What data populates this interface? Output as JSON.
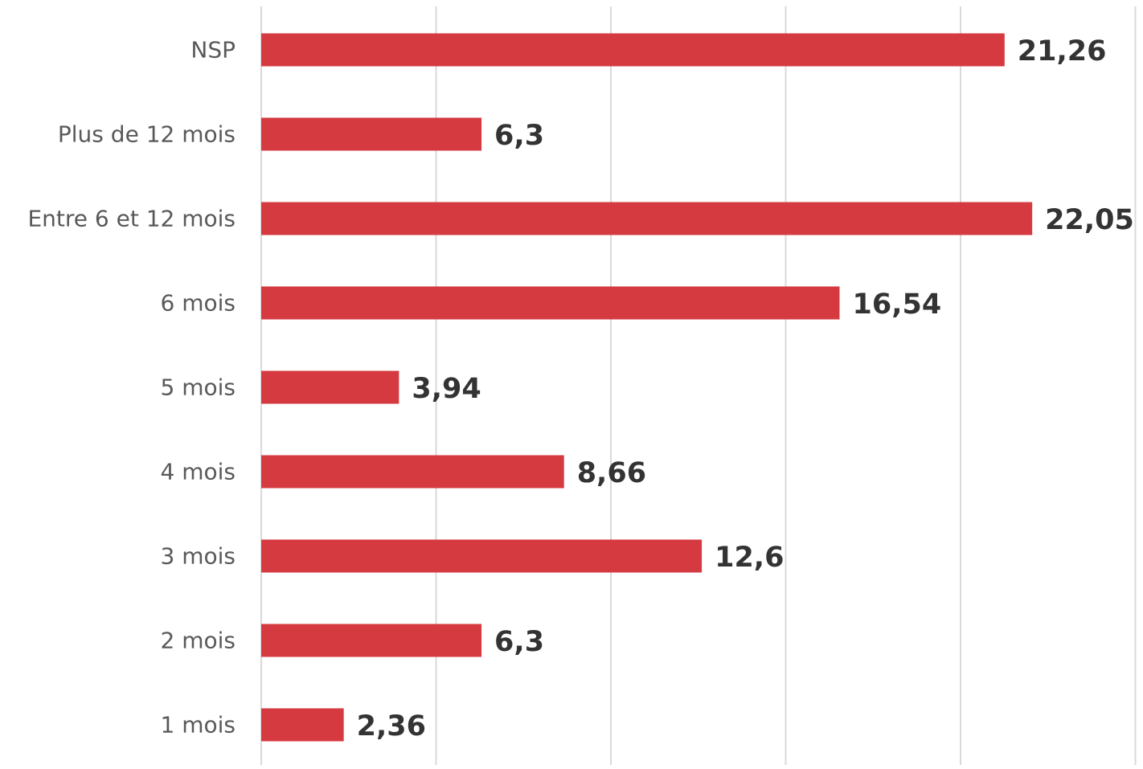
{
  "chart_data": {
    "type": "bar",
    "orientation": "horizontal",
    "categories": [
      "NSP",
      "Plus de 12 mois",
      "Entre 6 et 12 mois",
      "6 mois",
      "5 mois",
      "4 mois",
      "3 mois",
      "2 mois",
      "1 mois"
    ],
    "values": [
      21.26,
      6.3,
      22.05,
      16.54,
      3.94,
      8.66,
      12.6,
      6.3,
      2.36
    ],
    "value_labels": [
      "21,26",
      "6,3",
      "22,05",
      "16,54",
      "3,94",
      "8,66",
      "12,6",
      "6,3",
      "2,36"
    ],
    "title": "",
    "xlabel": "",
    "ylabel": "",
    "xlim": [
      0,
      25
    ],
    "grid_step": 5,
    "grid": true,
    "legend": "none",
    "tick_labels_visible": false,
    "bar_color": "#d63a41",
    "grid_color": "#d9d9d9",
    "category_label_color": "#595959",
    "value_label_color": "#333333"
  }
}
